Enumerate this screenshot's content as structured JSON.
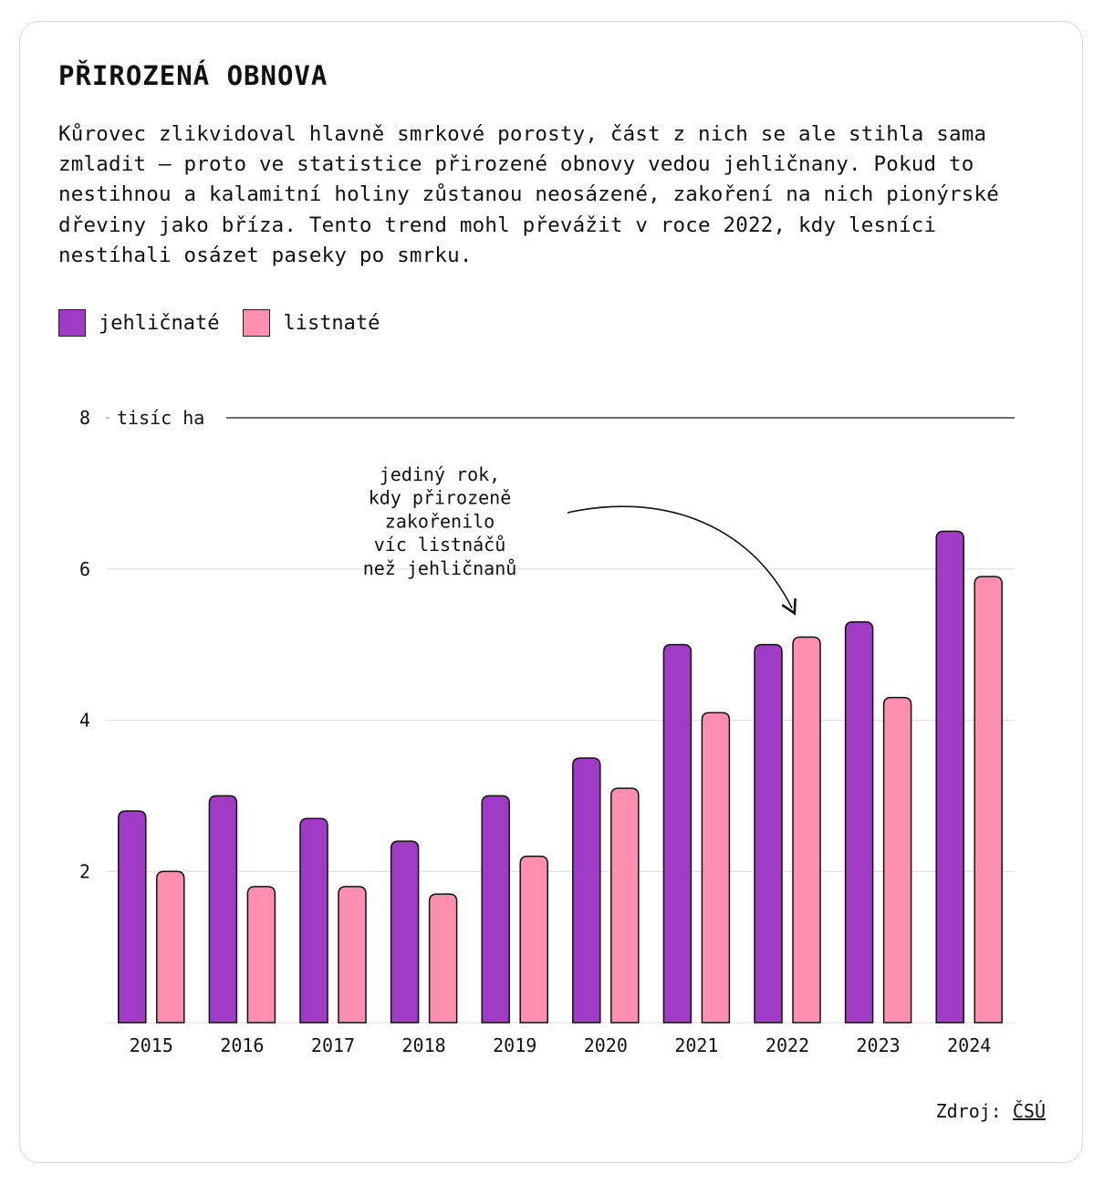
{
  "header": {
    "title": "PŘIROZENÁ OBNOVA",
    "description": "Kůrovec zlikvidoval hlavně smrkové porosty, část z nich se ale stihla sama zmladit – proto ve statistice přirozené obnovy vedou jehličnany. Pokud to nestihnou a kalamitní holiny zůstanou neosázené, zakoření na nich pionýrské dřeviny jako bříza. Tento trend mohl převážit v roce 2022, kdy lesníci nestíhali osázet paseky po smrku."
  },
  "legend": {
    "conifer": "jehličnaté",
    "deciduous": "listnaté"
  },
  "source": {
    "label": "Zdroj:",
    "link": "ČSÚ"
  },
  "chart_data": {
    "type": "bar",
    "title": "PŘIROZENÁ OBNOVA",
    "ylabel": "tisíc ha",
    "ylim": [
      0,
      8
    ],
    "yticks": [
      2,
      4,
      6,
      8
    ],
    "grid": true,
    "legend_position": "top-left",
    "categories": [
      "2015",
      "2016",
      "2017",
      "2018",
      "2019",
      "2020",
      "2021",
      "2022",
      "2023",
      "2024"
    ],
    "series": [
      {
        "name": "jehličnaté",
        "color": "#9f3bc4",
        "values": [
          2.8,
          3.0,
          2.7,
          2.4,
          3.0,
          3.5,
          5.0,
          5.0,
          5.3,
          6.5
        ]
      },
      {
        "name": "listnaté",
        "color": "#ff8fb1",
        "values": [
          2.0,
          1.8,
          1.8,
          1.7,
          2.2,
          3.1,
          4.1,
          5.1,
          4.3,
          5.9
        ]
      }
    ],
    "annotation": {
      "category": "2022",
      "lines": [
        "jediný rok,",
        "kdy přirozeně",
        "zakořenilo",
        "víc listnáčů",
        "než jehličnanů"
      ]
    }
  }
}
